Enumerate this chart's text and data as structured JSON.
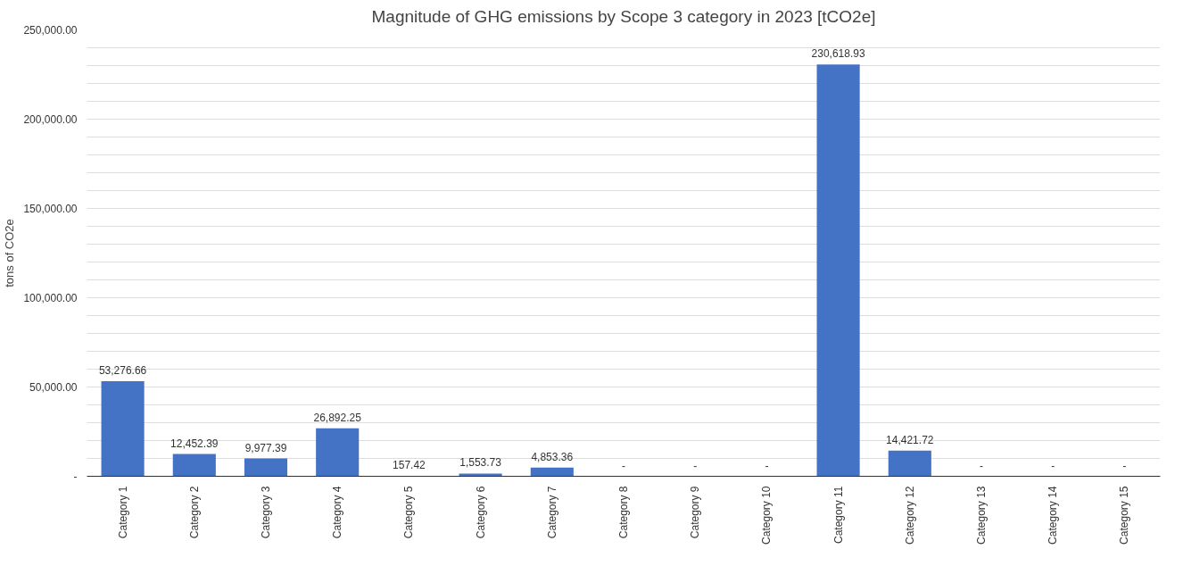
{
  "chart_data": {
    "type": "bar",
    "title": "Magnitude of GHG emissions by Scope 3 category in 2023 [tCO2e]",
    "ylabel": "tons of CO2e",
    "categories": [
      "Category 1",
      "Category 2",
      "Category 3",
      "Category 4",
      "Category 5",
      "Category 6",
      "Category 7",
      "Category 8",
      "Category 9",
      "Category 10",
      "Category 11",
      "Category 12",
      "Category 13",
      "Category 14",
      "Category 15"
    ],
    "values": [
      53276.66,
      12452.39,
      9977.39,
      26892.25,
      157.42,
      1553.73,
      4853.36,
      0,
      0,
      0,
      230618.93,
      14421.72,
      0,
      0,
      0
    ],
    "value_labels": [
      "53,276.66",
      "12,452.39",
      "9,977.39",
      "26,892.25",
      "157.42",
      "1,553.73",
      "4,853.36",
      "-",
      "-",
      "-",
      "230,618.93",
      "14,421.72",
      "-",
      "-",
      "-"
    ],
    "color": "#4472c4",
    "ylim": [
      0,
      250000
    ],
    "yticks": [
      {
        "value": 0,
        "label": "-"
      },
      {
        "value": 10000,
        "label": null
      },
      {
        "value": 20000,
        "label": null
      },
      {
        "value": 30000,
        "label": null
      },
      {
        "value": 40000,
        "label": null
      },
      {
        "value": 50000,
        "label": "50,000.00"
      },
      {
        "value": 60000,
        "label": null
      },
      {
        "value": 70000,
        "label": null
      },
      {
        "value": 80000,
        "label": null
      },
      {
        "value": 90000,
        "label": null
      },
      {
        "value": 100000,
        "label": "100,000.00"
      },
      {
        "value": 110000,
        "label": null
      },
      {
        "value": 120000,
        "label": null
      },
      {
        "value": 130000,
        "label": null
      },
      {
        "value": 140000,
        "label": null
      },
      {
        "value": 150000,
        "label": "150,000.00"
      },
      {
        "value": 160000,
        "label": null
      },
      {
        "value": 170000,
        "label": null
      },
      {
        "value": 180000,
        "label": null
      },
      {
        "value": 190000,
        "label": null
      },
      {
        "value": 200000,
        "label": "200,000.00"
      },
      {
        "value": 210000,
        "label": null
      },
      {
        "value": 220000,
        "label": null
      },
      {
        "value": 230000,
        "label": null
      },
      {
        "value": 240000,
        "label": null
      },
      {
        "value": 250000,
        "label": "250,000.00"
      }
    ],
    "grid": "y"
  }
}
